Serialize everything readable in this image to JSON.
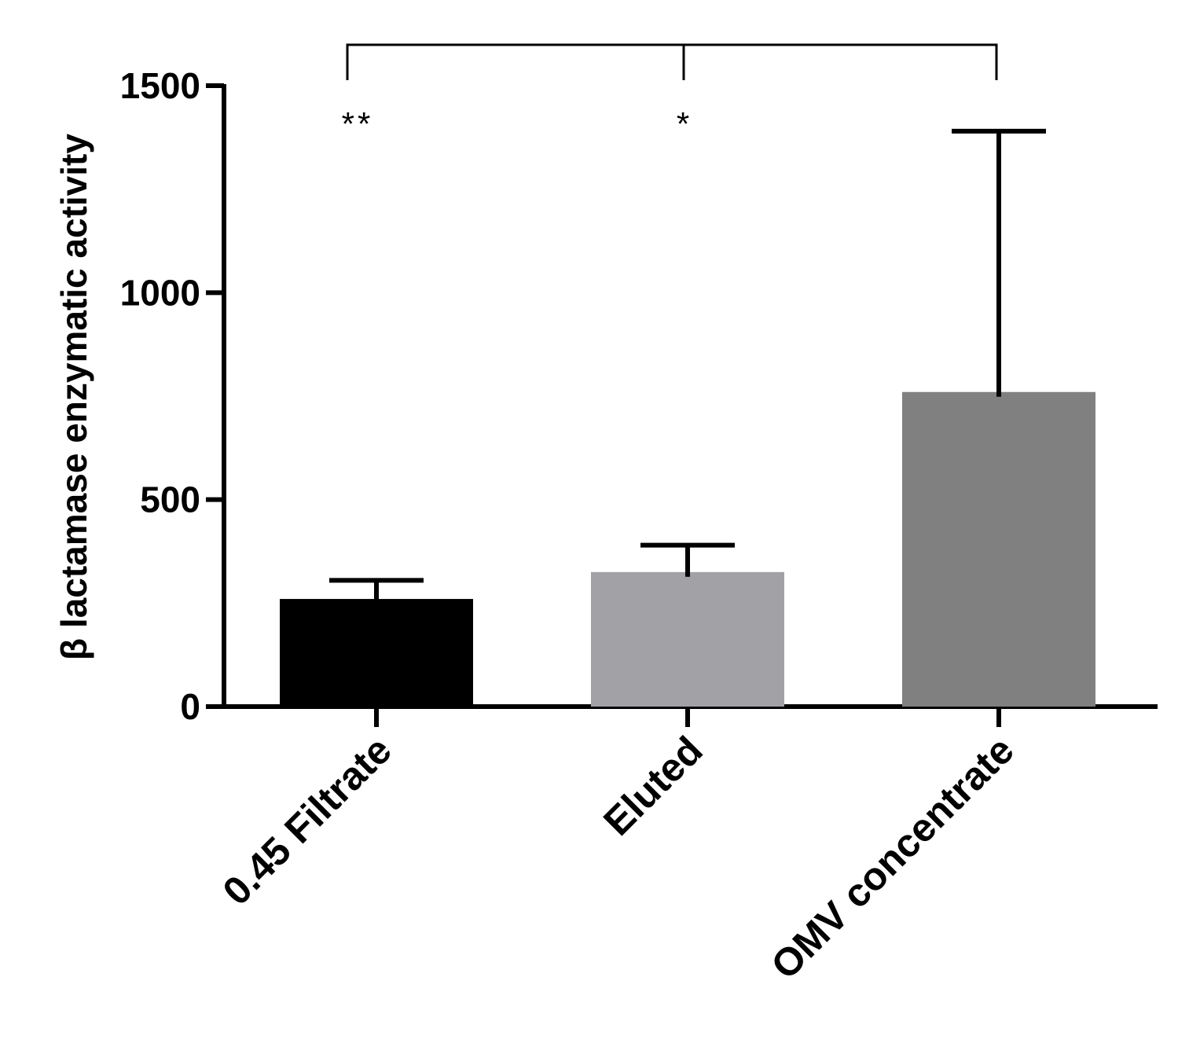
{
  "chart_data": {
    "type": "bar",
    "title": "",
    "xlabel": "",
    "ylabel": "β lactamase enzymatic activity",
    "ylim": [
      0,
      1500
    ],
    "yticks": [
      0,
      500,
      1000,
      1500
    ],
    "grid": false,
    "categories": [
      "0.45 Filtrate",
      "Eluted",
      "OMV concentrate"
    ],
    "values": [
      260,
      325,
      760
    ],
    "errors": [
      45,
      65,
      630
    ],
    "colors": [
      "#000000",
      "#a2a2a6",
      "#808080"
    ],
    "significance": {
      "bracket": "0.45 Filtrate / Eluted / OMV concentrate",
      "annotations": [
        {
          "category": "0.45 Filtrate",
          "label": "**"
        },
        {
          "category": "Eluted",
          "label": "*"
        }
      ]
    }
  }
}
